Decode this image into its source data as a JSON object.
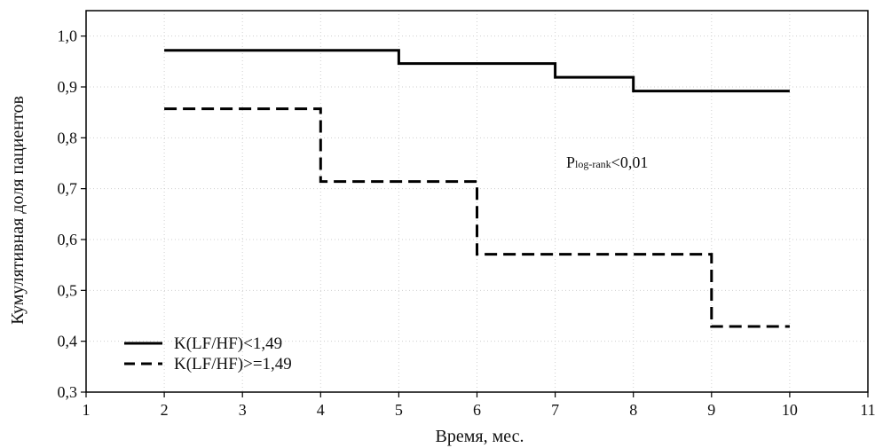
{
  "chart_data": {
    "type": "line",
    "title": "",
    "xlabel": "Время, мес.",
    "ylabel": "Кумулятивная доля пациентов",
    "xlim": [
      1,
      11
    ],
    "ylim": [
      0.3,
      1.05
    ],
    "x_ticks": [
      1,
      2,
      3,
      4,
      5,
      6,
      7,
      8,
      9,
      10,
      11
    ],
    "x_tick_labels": [
      "1",
      "2",
      "3",
      "4",
      "5",
      "6",
      "7",
      "8",
      "9",
      "10",
      "11"
    ],
    "y_ticks": [
      0.3,
      0.4,
      0.5,
      0.6,
      0.7,
      0.8,
      0.9,
      1.0
    ],
    "y_tick_labels": [
      "0,3",
      "0,4",
      "0,5",
      "0,6",
      "0,7",
      "0,8",
      "0,9",
      "1,0"
    ],
    "grid": true,
    "step": true,
    "legend_position": "bottom-left",
    "series": [
      {
        "name": "K(LF/HF)<1,49",
        "line_style": "solid",
        "color": "#000000",
        "x": [
          2,
          5,
          7,
          8,
          10
        ],
        "y": [
          0.972,
          0.946,
          0.919,
          0.892,
          0.892
        ]
      },
      {
        "name": "K(LF/HF)>=1,49",
        "line_style": "dashed",
        "color": "#000000",
        "x": [
          2,
          4,
          6,
          9,
          10
        ],
        "y": [
          0.857,
          0.714,
          0.571,
          0.429,
          0.429
        ]
      }
    ],
    "annotations": [
      {
        "main": "P",
        "sub": "log-rank",
        "tail": "<0,01",
        "x": 6.6,
        "y": 0.745
      }
    ]
  }
}
